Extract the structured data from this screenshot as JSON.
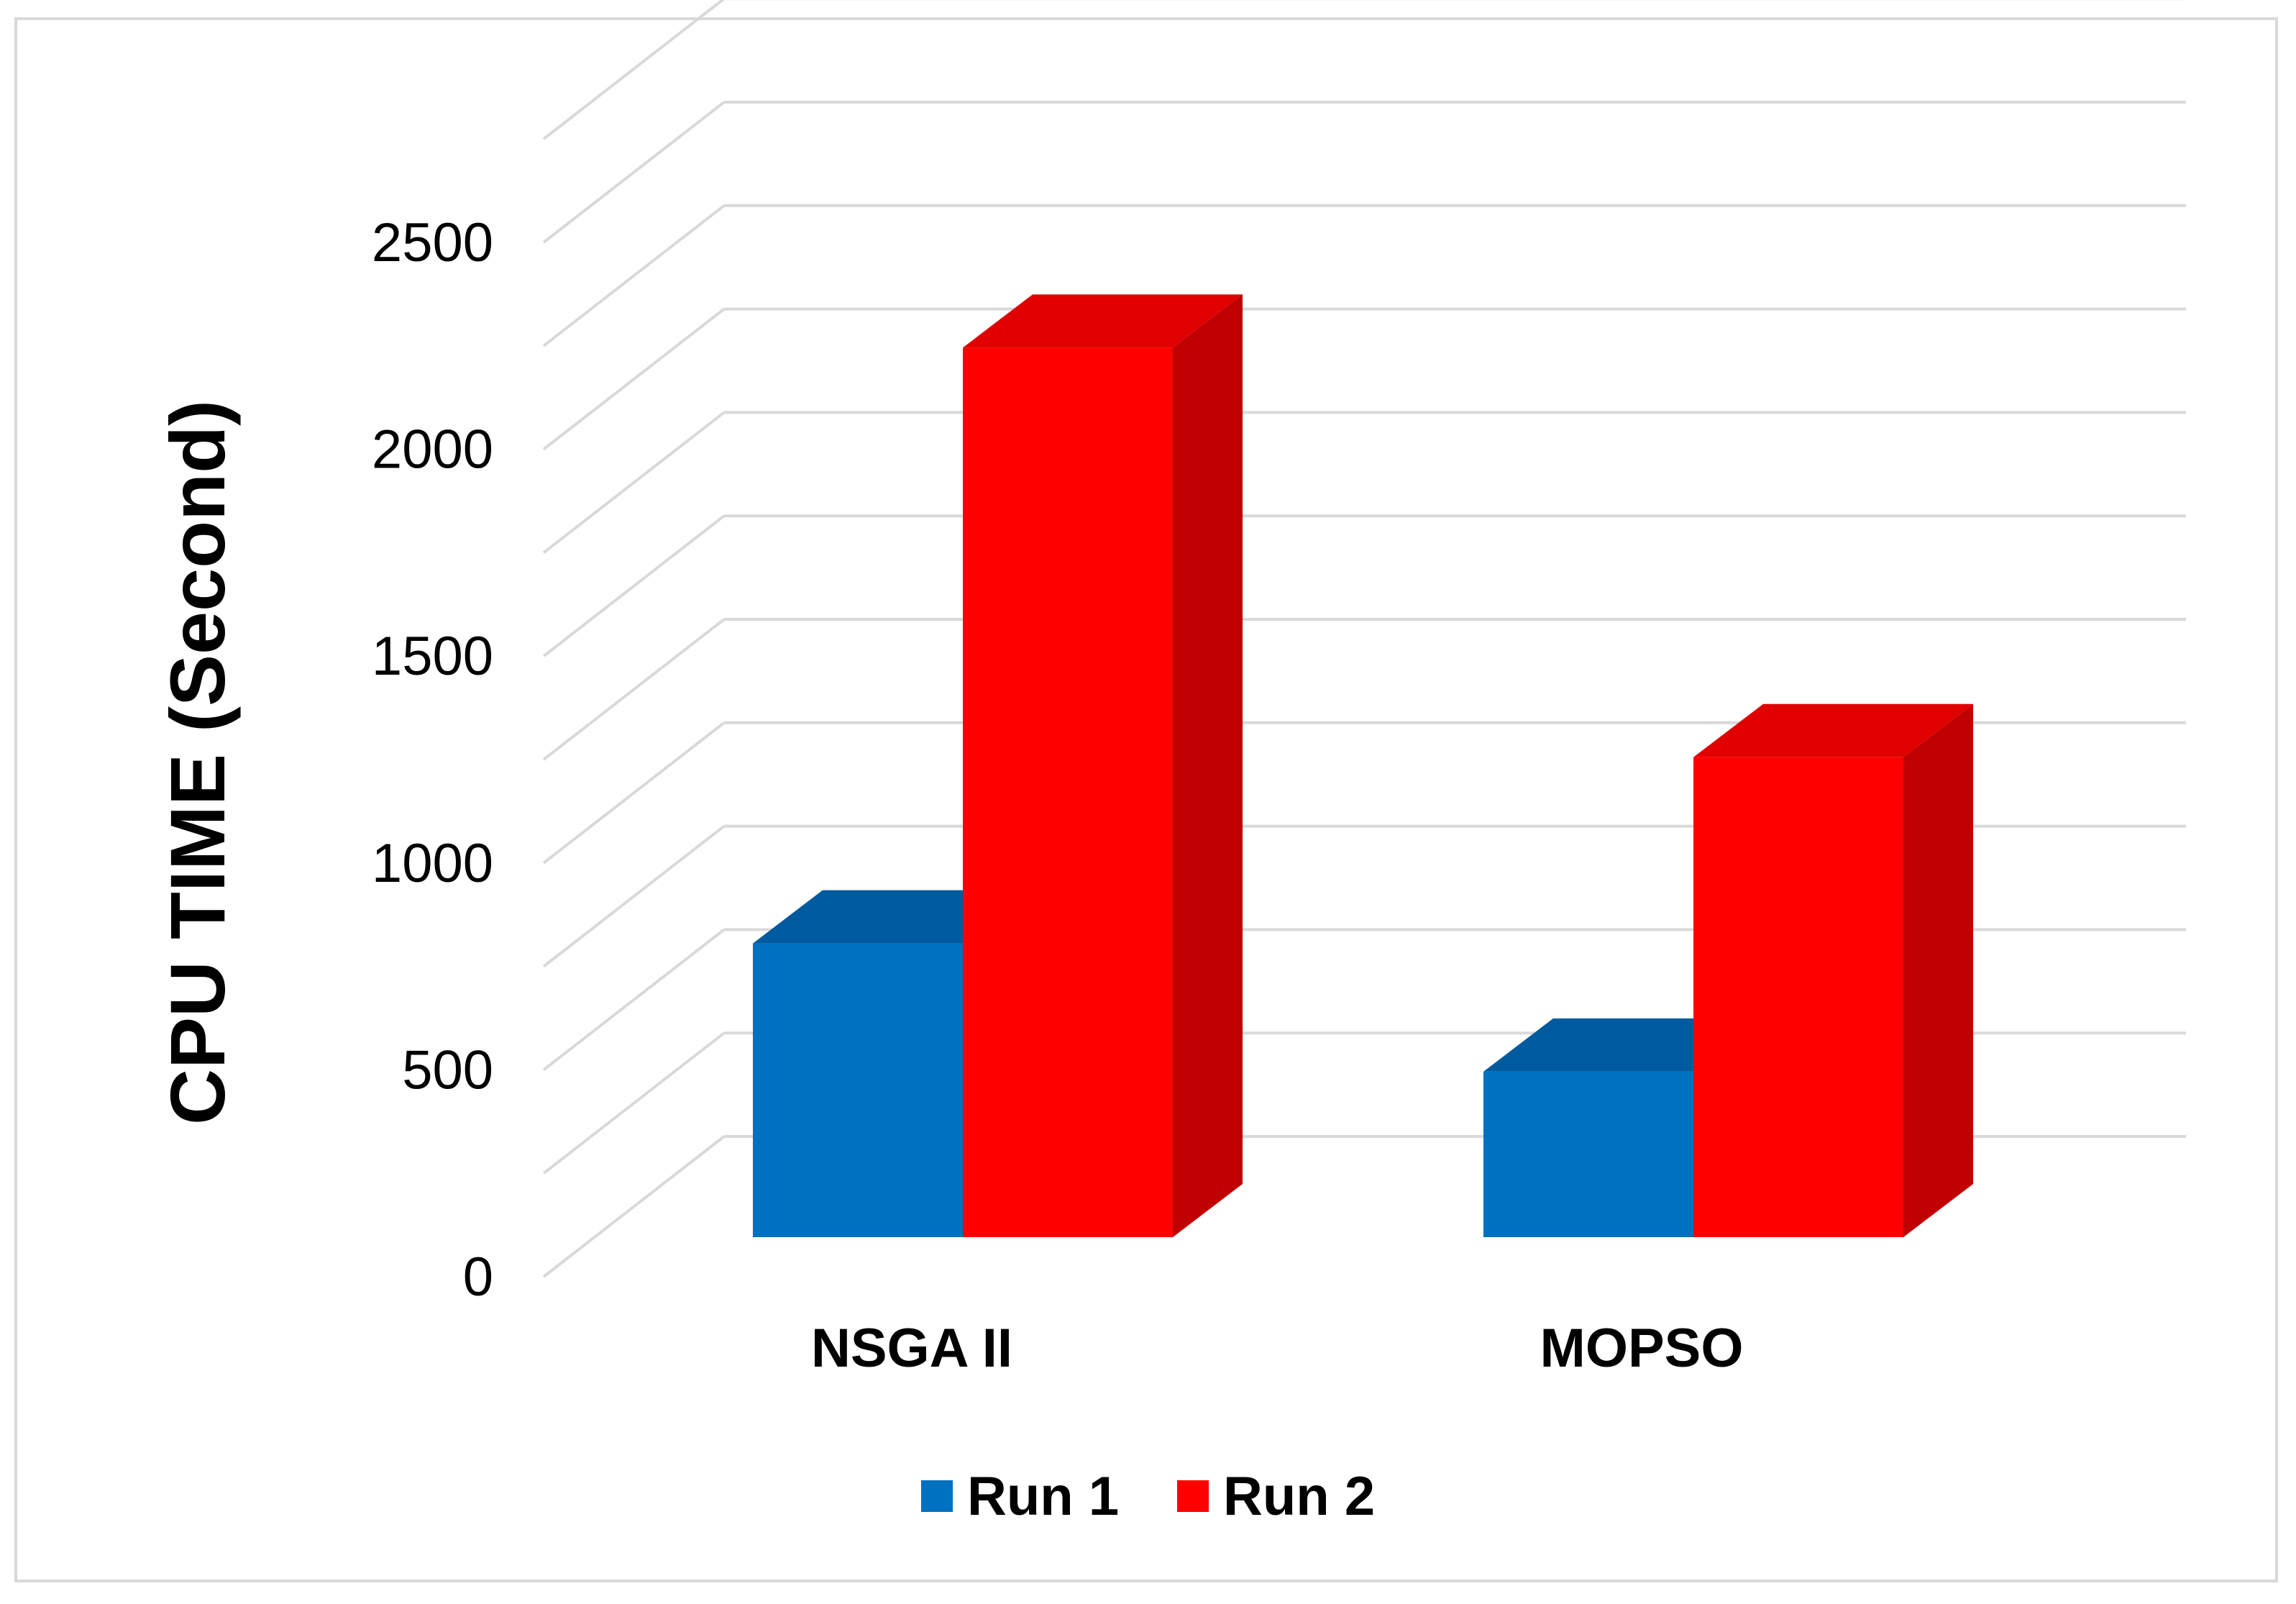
{
  "chart_data": {
    "type": "bar",
    "style": "3d-clustered-column",
    "title": "",
    "xlabel": "",
    "ylabel": "CPU TIME (Second)",
    "categories": [
      "NSGA II",
      "MOPSO"
    ],
    "series": [
      {
        "name": "Run 1",
        "values": [
          710,
          400
        ],
        "color": "#0070C0"
      },
      {
        "name": "Run 2",
        "values": [
          2150,
          1160
        ],
        "color": "#FF0000"
      }
    ],
    "y_ticks": [
      "0",
      "500",
      "1000",
      "1500",
      "2000",
      "2500"
    ],
    "ylim": [
      0,
      2750
    ],
    "grid": true,
    "legend_position": "bottom"
  },
  "colors": {
    "run1_front": "#0070C0",
    "run1_top": "#005A9E",
    "run2_front": "#FF0000",
    "run2_top": "#E00000",
    "run2_side": "#C00000",
    "gridline": "#d9d9d9"
  }
}
